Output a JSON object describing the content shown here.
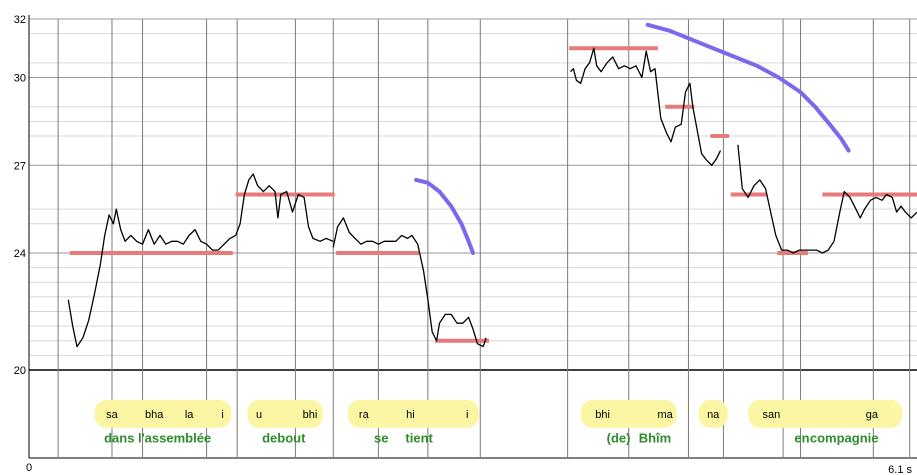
{
  "chart_data": {
    "type": "line",
    "title": "",
    "xlabel": "",
    "ylabel": "",
    "xlim": [
      0,
      6.1
    ],
    "ylim": [
      20,
      32
    ],
    "x_tick_labels": [
      "0",
      "6.1 s"
    ],
    "y_tick_labels": [
      {
        "value": 32,
        "label": "32"
      },
      {
        "value": 30,
        "label": "30"
      },
      {
        "value": 27,
        "label": "27"
      },
      {
        "value": 24,
        "label": "24"
      },
      {
        "value": 20,
        "label": "20"
      }
    ],
    "y_grid": [
      31.5,
      30.5,
      29,
      28.5,
      28,
      25.5,
      25,
      23.5,
      23,
      22.5,
      22,
      21.5,
      21,
      20.5
    ],
    "segment_boundaries": [
      0.2,
      0.57,
      0.78,
      1.22,
      1.43,
      1.83,
      2.09,
      2.4,
      2.74,
      3.1,
      3.7,
      4.12,
      4.53,
      4.77,
      5.18,
      5.3,
      5.8,
      6.05
    ],
    "colors": {
      "pitch": "#000000",
      "target": "#e87a7a",
      "contour": "#7b68ee",
      "syllable_bg": "#fbf6a4",
      "gloss": "#2e8b2e"
    },
    "pitch_segments": [
      [
        [
          0.27,
          22.4
        ],
        [
          0.3,
          21.5
        ],
        [
          0.33,
          20.8
        ],
        [
          0.37,
          21.1
        ],
        [
          0.41,
          21.7
        ],
        [
          0.45,
          22.6
        ],
        [
          0.49,
          23.6
        ],
        [
          0.52,
          24.6
        ],
        [
          0.55,
          25.3
        ],
        [
          0.58,
          25.0
        ],
        [
          0.6,
          25.5
        ],
        [
          0.63,
          24.8
        ],
        [
          0.66,
          24.4
        ],
        [
          0.7,
          24.6
        ],
        [
          0.74,
          24.4
        ],
        [
          0.78,
          24.3
        ],
        [
          0.82,
          24.8
        ],
        [
          0.86,
          24.3
        ],
        [
          0.9,
          24.6
        ],
        [
          0.94,
          24.3
        ],
        [
          0.98,
          24.4
        ],
        [
          1.02,
          24.4
        ],
        [
          1.06,
          24.3
        ],
        [
          1.1,
          24.6
        ],
        [
          1.14,
          24.8
        ],
        [
          1.18,
          24.4
        ],
        [
          1.22,
          24.3
        ],
        [
          1.26,
          24.1
        ],
        [
          1.3,
          24.1
        ],
        [
          1.34,
          24.3
        ],
        [
          1.38,
          24.5
        ],
        [
          1.42,
          24.6
        ],
        [
          1.45,
          25.0
        ],
        [
          1.48,
          26.0
        ],
        [
          1.51,
          26.5
        ],
        [
          1.54,
          26.7
        ],
        [
          1.57,
          26.3
        ],
        [
          1.61,
          26.1
        ],
        [
          1.65,
          26.3
        ],
        [
          1.69,
          26.1
        ],
        [
          1.71,
          25.2
        ],
        [
          1.73,
          26.0
        ],
        [
          1.77,
          26.1
        ],
        [
          1.81,
          25.4
        ],
        [
          1.85,
          26.0
        ],
        [
          1.89,
          25.9
        ],
        [
          1.92,
          24.9
        ],
        [
          1.95,
          24.5
        ],
        [
          2.0,
          24.4
        ],
        [
          2.04,
          24.5
        ],
        [
          2.09,
          24.4
        ]
      ],
      [
        [
          2.09,
          24.2
        ],
        [
          2.12,
          24.9
        ],
        [
          2.16,
          25.2
        ],
        [
          2.2,
          24.7
        ],
        [
          2.24,
          24.5
        ],
        [
          2.28,
          24.3
        ],
        [
          2.32,
          24.4
        ],
        [
          2.36,
          24.4
        ],
        [
          2.4,
          24.3
        ],
        [
          2.44,
          24.4
        ],
        [
          2.48,
          24.4
        ],
        [
          2.52,
          24.4
        ],
        [
          2.56,
          24.6
        ],
        [
          2.6,
          24.5
        ],
        [
          2.63,
          24.6
        ],
        [
          2.67,
          24.3
        ],
        [
          2.71,
          23.4
        ],
        [
          2.74,
          22.4
        ],
        [
          2.77,
          21.3
        ],
        [
          2.8,
          21.0
        ],
        [
          2.82,
          21.6
        ],
        [
          2.86,
          21.9
        ],
        [
          2.9,
          21.9
        ],
        [
          2.94,
          21.6
        ],
        [
          2.98,
          21.6
        ],
        [
          3.02,
          21.8
        ],
        [
          3.05,
          21.4
        ],
        [
          3.08,
          20.9
        ],
        [
          3.12,
          20.8
        ],
        [
          3.14,
          21.1
        ]
      ],
      [
        [
          3.72,
          30.2
        ],
        [
          3.74,
          30.3
        ],
        [
          3.76,
          29.9
        ],
        [
          3.79,
          29.8
        ],
        [
          3.82,
          30.3
        ],
        [
          3.85,
          30.5
        ],
        [
          3.88,
          31.0
        ],
        [
          3.9,
          30.4
        ],
        [
          3.93,
          30.2
        ],
        [
          3.97,
          30.5
        ],
        [
          4.01,
          30.7
        ],
        [
          4.05,
          30.3
        ],
        [
          4.09,
          30.4
        ],
        [
          4.13,
          30.3
        ],
        [
          4.17,
          30.4
        ],
        [
          4.21,
          30.0
        ],
        [
          4.24,
          30.9
        ],
        [
          4.27,
          30.2
        ],
        [
          4.3,
          30.3
        ],
        [
          4.34,
          28.6
        ],
        [
          4.38,
          28.1
        ],
        [
          4.41,
          27.8
        ],
        [
          4.44,
          28.3
        ],
        [
          4.48,
          28.4
        ],
        [
          4.51,
          29.5
        ],
        [
          4.54,
          29.8
        ],
        [
          4.56,
          29.0
        ],
        [
          4.59,
          28.2
        ],
        [
          4.62,
          27.4
        ],
        [
          4.65,
          27.2
        ],
        [
          4.69,
          27.0
        ],
        [
          4.72,
          27.2
        ],
        [
          4.75,
          27.5
        ]
      ],
      [
        [
          4.87,
          27.7
        ],
        [
          4.9,
          26.2
        ],
        [
          4.94,
          25.9
        ],
        [
          4.98,
          26.3
        ],
        [
          5.02,
          26.5
        ],
        [
          5.06,
          26.2
        ],
        [
          5.09,
          25.5
        ],
        [
          5.13,
          24.6
        ],
        [
          5.17,
          24.1
        ],
        [
          5.21,
          24.1
        ],
        [
          5.25,
          24.0
        ],
        [
          5.29,
          24.1
        ],
        [
          5.33,
          24.1
        ],
        [
          5.37,
          24.1
        ],
        [
          5.41,
          24.1
        ],
        [
          5.45,
          24.0
        ],
        [
          5.49,
          24.1
        ],
        [
          5.53,
          24.4
        ],
        [
          5.57,
          25.4
        ],
        [
          5.6,
          26.1
        ],
        [
          5.64,
          25.9
        ],
        [
          5.68,
          25.5
        ],
        [
          5.71,
          25.2
        ],
        [
          5.74,
          25.5
        ],
        [
          5.78,
          25.8
        ],
        [
          5.82,
          25.9
        ],
        [
          5.86,
          25.8
        ],
        [
          5.89,
          26.0
        ],
        [
          5.93,
          25.9
        ],
        [
          5.96,
          25.4
        ],
        [
          5.99,
          25.6
        ],
        [
          6.02,
          25.4
        ],
        [
          6.06,
          25.2
        ],
        [
          6.1,
          25.4
        ]
      ]
    ],
    "target_levels": [
      {
        "x0": 0.28,
        "x1": 1.4,
        "y": 24.0
      },
      {
        "x0": 1.42,
        "x1": 2.1,
        "y": 26.0
      },
      {
        "x0": 2.11,
        "x1": 2.68,
        "y": 24.0
      },
      {
        "x0": 2.79,
        "x1": 3.16,
        "y": 21.0
      },
      {
        "x0": 3.71,
        "x1": 4.32,
        "y": 31.0
      },
      {
        "x0": 4.37,
        "x1": 4.57,
        "y": 29.0
      },
      {
        "x0": 4.68,
        "x1": 4.81,
        "y": 28.0
      },
      {
        "x0": 4.82,
        "x1": 5.07,
        "y": 26.0
      },
      {
        "x0": 5.14,
        "x1": 5.35,
        "y": 24.0
      },
      {
        "x0": 5.45,
        "x1": 6.1,
        "y": 26.0
      }
    ],
    "contours": [
      [
        [
          2.66,
          26.5
        ],
        [
          2.74,
          26.4
        ],
        [
          2.82,
          26.1
        ],
        [
          2.9,
          25.6
        ],
        [
          2.97,
          25.0
        ],
        [
          3.02,
          24.4
        ],
        [
          3.05,
          24.0
        ]
      ],
      [
        [
          4.25,
          31.8
        ],
        [
          4.4,
          31.6
        ],
        [
          4.55,
          31.3
        ],
        [
          4.7,
          31.0
        ],
        [
          4.85,
          30.7
        ],
        [
          5.0,
          30.4
        ],
        [
          5.15,
          30.0
        ],
        [
          5.3,
          29.5
        ],
        [
          5.4,
          29.0
        ],
        [
          5.5,
          28.4
        ],
        [
          5.58,
          27.9
        ],
        [
          5.63,
          27.5
        ]
      ]
    ],
    "syllable_groups": [
      {
        "x0": 0.45,
        "x1": 1.39,
        "y": 18.5,
        "syllables": [
          {
            "x": 0.57,
            "text": "sa"
          },
          {
            "x": 0.86,
            "text": "bha"
          },
          {
            "x": 1.1,
            "text": "la"
          },
          {
            "x": 1.33,
            "text": "i"
          }
        ]
      },
      {
        "x0": 1.5,
        "x1": 2.02,
        "y": 18.5,
        "syllables": [
          {
            "x": 1.58,
            "text": "u"
          },
          {
            "x": 1.93,
            "text": "bhi"
          }
        ]
      },
      {
        "x0": 2.19,
        "x1": 3.09,
        "y": 18.5,
        "syllables": [
          {
            "x": 2.3,
            "text": "ra"
          },
          {
            "x": 2.62,
            "text": "hi"
          },
          {
            "x": 3.01,
            "text": "i"
          }
        ]
      },
      {
        "x0": 3.79,
        "x1": 4.45,
        "y": 18.5,
        "syllables": [
          {
            "x": 3.94,
            "text": "bhi"
          },
          {
            "x": 4.37,
            "text": "ma"
          }
        ]
      },
      {
        "x0": 4.6,
        "x1": 4.8,
        "y": 18.5,
        "syllables": [
          {
            "x": 4.7,
            "text": "na"
          }
        ]
      },
      {
        "x0": 4.94,
        "x1": 6.0,
        "y": 18.5,
        "syllables": [
          {
            "x": 5.1,
            "text": "san"
          },
          {
            "x": 5.79,
            "text": "ga"
          }
        ]
      }
    ],
    "glosses": [
      {
        "x": 0.62,
        "y": 17.7,
        "text": "dans"
      },
      {
        "x": 1.0,
        "y": 17.7,
        "text": "l'assemblée"
      },
      {
        "x": 1.75,
        "y": 17.7,
        "text": "debout"
      },
      {
        "x": 2.42,
        "y": 17.7,
        "text": "se"
      },
      {
        "x": 2.68,
        "y": 17.7,
        "text": "tient"
      },
      {
        "x": 4.05,
        "y": 17.7,
        "text": "(de)"
      },
      {
        "x": 4.3,
        "y": 17.7,
        "text": "Bhîm"
      },
      {
        "x": 5.31,
        "y": 17.7,
        "text": "en"
      },
      {
        "x": 5.6,
        "y": 17.7,
        "text": "compagnie"
      }
    ]
  }
}
